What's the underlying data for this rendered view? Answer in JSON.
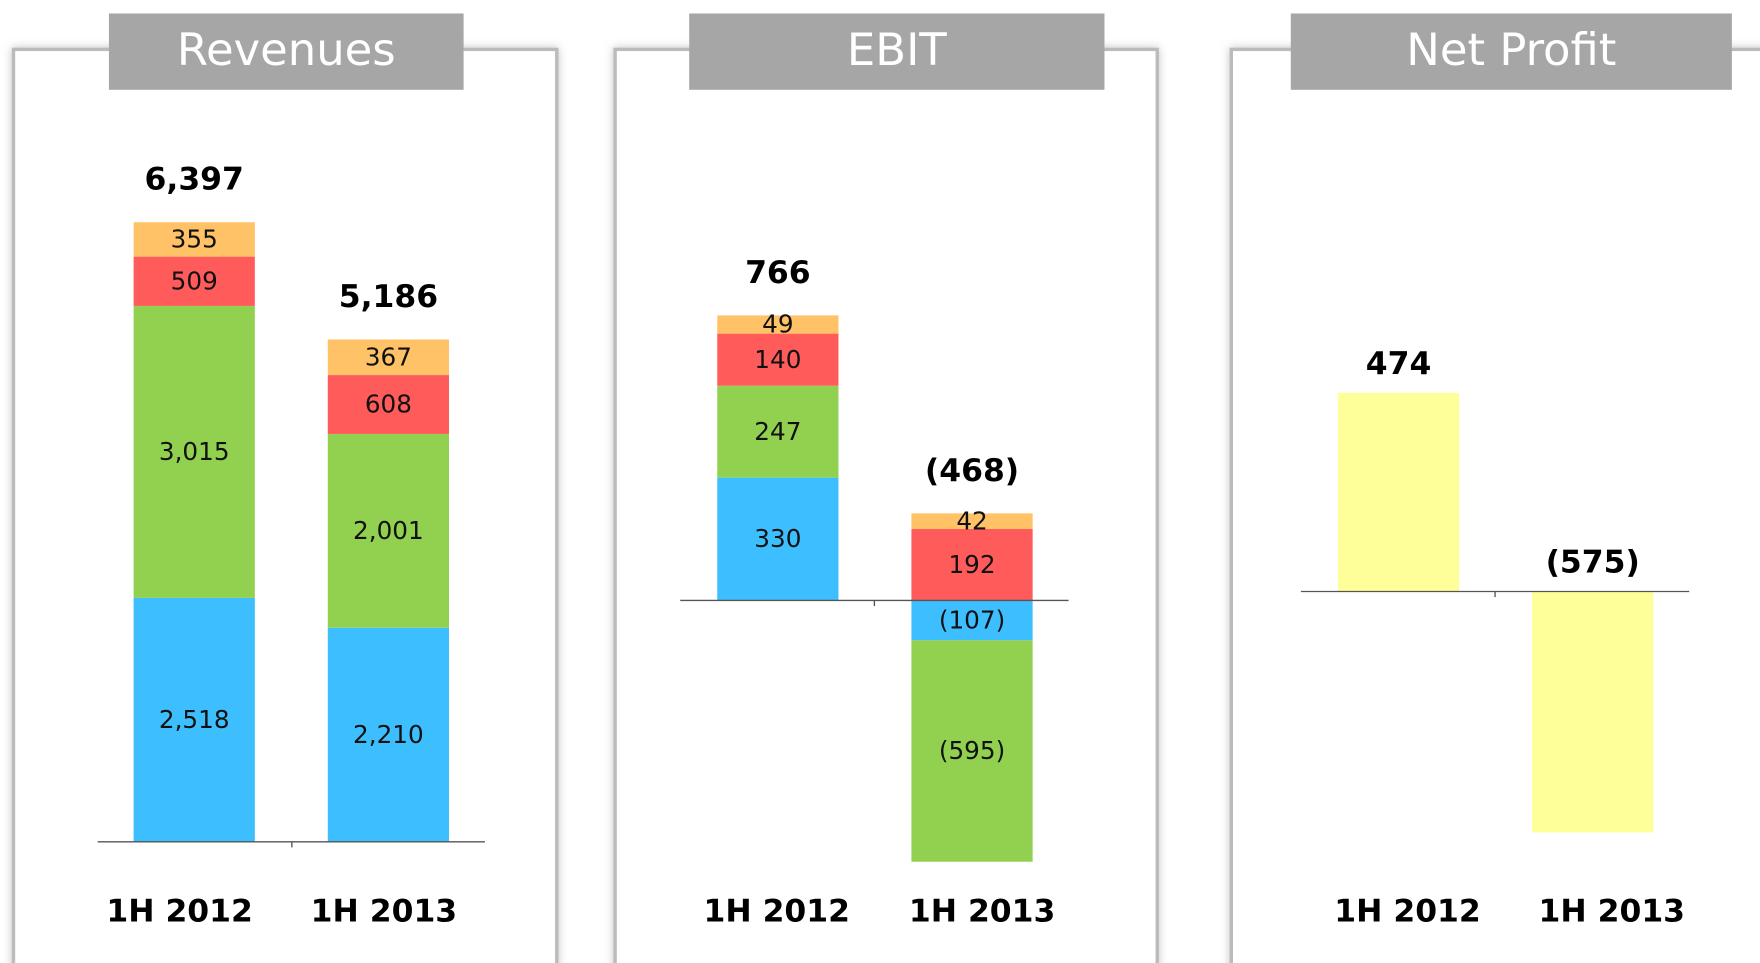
{
  "chart_data": [
    {
      "type": "bar",
      "stacked": true,
      "title": "Revenues",
      "categories": [
        "1H 2012",
        "1H 2013"
      ],
      "series": [
        {
          "color": "#3dbfff",
          "values": [
            2518,
            2210
          ],
          "value_labels": [
            "2,518",
            "2,210"
          ]
        },
        {
          "color": "#92d050",
          "values": [
            3015,
            2001
          ],
          "value_labels": [
            "3,015",
            "2,001"
          ]
        },
        {
          "color": "#ff5b5b",
          "values": [
            509,
            608
          ]
        },
        {
          "color": "#ffc266",
          "values": [
            355,
            367
          ]
        }
      ],
      "totals": [
        6397,
        5186
      ],
      "total_labels": [
        "6,397",
        "5,186"
      ]
    },
    {
      "type": "bar",
      "stacked": true,
      "title": "EBIT",
      "categories": [
        "1H 2012",
        "1H 2013"
      ],
      "series": [
        {
          "color": "#3dbfff",
          "values": [
            330,
            -107
          ],
          "value_labels": [
            "330",
            "(107)"
          ]
        },
        {
          "color": "#92d050",
          "values": [
            247,
            -595
          ],
          "value_labels": [
            "247",
            "(595)"
          ]
        },
        {
          "color": "#ff5b5b",
          "values": [
            140,
            192
          ]
        },
        {
          "color": "#ffc266",
          "values": [
            49,
            42
          ]
        }
      ],
      "totals": [
        766,
        -468
      ],
      "total_labels": [
        "766",
        "(468)"
      ]
    },
    {
      "type": "bar",
      "title": "Net Profit",
      "categories": [
        "1H 2012",
        "1H 2013"
      ],
      "color": "#ffff99",
      "values": [
        474,
        -575
      ],
      "value_labels": [
        "474",
        "(575)"
      ]
    }
  ]
}
